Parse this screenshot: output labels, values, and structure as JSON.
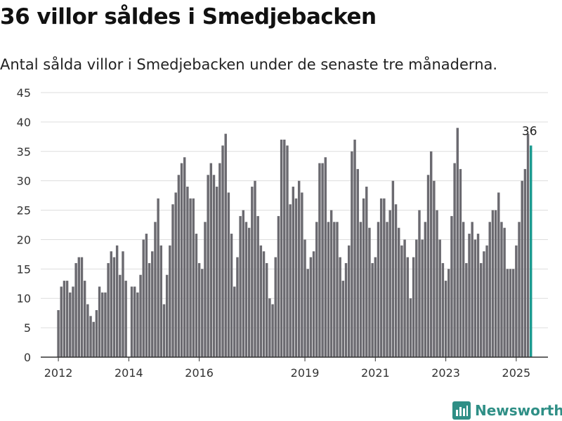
{
  "header": {
    "title": "36 villor såldes i Smedjebacken",
    "subtitle": "Antal sålda villor i Smedjebacken under de senaste tre månaderna."
  },
  "brand": {
    "name": "Newsworthy",
    "icon": "newsworthy-logo-icon"
  },
  "colors": {
    "bar": "#6b6a70",
    "highlight": "#1a9a8f",
    "grid": "#dddddd",
    "brand": "#2f8f86"
  },
  "chart_data": {
    "type": "bar",
    "ylim": [
      0,
      45
    ],
    "yticks": [
      0,
      5,
      10,
      15,
      20,
      25,
      30,
      35,
      40,
      45
    ],
    "x_range": [
      2011.5,
      2025.9
    ],
    "xticks": [
      {
        "label": "2012",
        "value": 2012.0
      },
      {
        "label": "2014",
        "value": 2014.0
      },
      {
        "label": "2016",
        "value": 2016.0
      },
      {
        "label": "2019",
        "value": 2019.0
      },
      {
        "label": "2021",
        "value": 2021.0
      },
      {
        "label": "2023",
        "value": 2023.0
      },
      {
        "label": "2025",
        "value": 2025.0
      }
    ],
    "x_start": 2012.0,
    "x_step": 0.08333,
    "values": [
      8,
      12,
      13,
      13,
      11,
      12,
      16,
      17,
      17,
      13,
      9,
      7,
      6,
      8,
      12,
      11,
      11,
      16,
      18,
      17,
      19,
      14,
      18,
      13,
      null,
      12,
      12,
      11,
      14,
      20,
      21,
      16,
      18,
      23,
      27,
      19,
      9,
      14,
      19,
      26,
      28,
      31,
      33,
      34,
      29,
      27,
      27,
      21,
      16,
      15,
      23,
      31,
      33,
      31,
      29,
      33,
      36,
      38,
      28,
      21,
      12,
      17,
      24,
      25,
      23,
      22,
      29,
      30,
      24,
      19,
      18,
      16,
      10,
      9,
      17,
      24,
      37,
      37,
      36,
      26,
      29,
      27,
      30,
      28,
      20,
      15,
      17,
      18,
      23,
      33,
      33,
      34,
      23,
      25,
      23,
      23,
      17,
      13,
      16,
      19,
      35,
      37,
      32,
      23,
      27,
      29,
      22,
      16,
      17,
      23,
      27,
      27,
      23,
      25,
      30,
      26,
      22,
      19,
      20,
      17,
      10,
      17,
      20,
      25,
      20,
      23,
      31,
      35,
      30,
      25,
      20,
      16,
      13,
      15,
      24,
      33,
      39,
      32,
      23,
      16,
      21,
      23,
      20,
      21,
      16,
      18,
      19,
      23,
      25,
      25,
      28,
      23,
      22,
      15,
      15,
      15,
      19,
      23,
      30,
      32,
      38,
      36
    ],
    "highlight_last": true,
    "last_label": "36"
  }
}
